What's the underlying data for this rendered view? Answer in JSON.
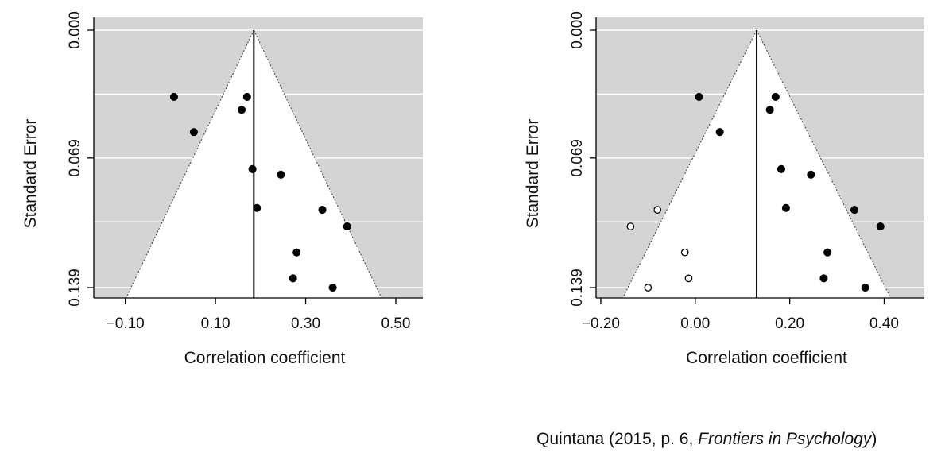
{
  "citation": {
    "prefix": "Quintana (2015, p. 6, ",
    "journal": "Frontiers in Psychology",
    "suffix": ")"
  },
  "chart_data": [
    {
      "type": "scatter",
      "subtype": "funnel-plot",
      "title": "",
      "xlabel": "Correlation coefficient",
      "ylabel": "Standard Error",
      "xlim": [
        -0.17,
        0.56
      ],
      "ylim": [
        0.139,
        0.0
      ],
      "y_reversed": true,
      "xticks": [
        -0.1,
        0.1,
        0.3,
        0.5
      ],
      "xtick_labels": [
        "−0.10",
        "0.10",
        "0.30",
        "0.50"
      ],
      "yticks": [
        0.0,
        0.069,
        0.139
      ],
      "ytick_labels": [
        "0.000",
        "0.069",
        "0.139"
      ],
      "grid": "horizontal",
      "funnel_center": 0.185,
      "funnel_multiplier": 1.96,
      "colors": {
        "background": "#d4d4d4",
        "funnel": "#ffffff",
        "points": "#000000"
      },
      "series": [
        {
          "marker": "filled",
          "points": [
            {
              "x": 0.008,
              "y": 0.036
            },
            {
              "x": 0.17,
              "y": 0.036
            },
            {
              "x": 0.158,
              "y": 0.043
            },
            {
              "x": 0.052,
              "y": 0.055
            },
            {
              "x": 0.182,
              "y": 0.075
            },
            {
              "x": 0.245,
              "y": 0.078
            },
            {
              "x": 0.192,
              "y": 0.096
            },
            {
              "x": 0.337,
              "y": 0.097
            },
            {
              "x": 0.392,
              "y": 0.106
            },
            {
              "x": 0.28,
              "y": 0.12
            },
            {
              "x": 0.272,
              "y": 0.134
            },
            {
              "x": 0.36,
              "y": 0.139
            }
          ]
        }
      ]
    },
    {
      "type": "scatter",
      "subtype": "funnel-plot",
      "title": "",
      "xlabel": "Correlation coefficient",
      "ylabel": "Standard Error",
      "xlim": [
        -0.21,
        0.485
      ],
      "ylim": [
        0.139,
        0.0
      ],
      "y_reversed": true,
      "xticks": [
        -0.2,
        0.0,
        0.2,
        0.4
      ],
      "xtick_labels": [
        "−0.20",
        "0.00",
        "0.20",
        "0.40"
      ],
      "yticks": [
        0.0,
        0.069,
        0.139
      ],
      "ytick_labels": [
        "0.000",
        "0.069",
        "0.139"
      ],
      "grid": "horizontal",
      "funnel_center": 0.13,
      "funnel_multiplier": 1.96,
      "colors": {
        "background": "#d4d4d4",
        "funnel": "#ffffff",
        "points": "#000000"
      },
      "series": [
        {
          "marker": "filled",
          "points": [
            {
              "x": 0.008,
              "y": 0.036
            },
            {
              "x": 0.17,
              "y": 0.036
            },
            {
              "x": 0.158,
              "y": 0.043
            },
            {
              "x": 0.052,
              "y": 0.055
            },
            {
              "x": 0.182,
              "y": 0.075
            },
            {
              "x": 0.245,
              "y": 0.078
            },
            {
              "x": 0.192,
              "y": 0.096
            },
            {
              "x": 0.337,
              "y": 0.097
            },
            {
              "x": 0.392,
              "y": 0.106
            },
            {
              "x": 0.28,
              "y": 0.12
            },
            {
              "x": 0.272,
              "y": 0.134
            },
            {
              "x": 0.36,
              "y": 0.139
            }
          ]
        },
        {
          "marker": "open",
          "points": [
            {
              "x": -0.08,
              "y": 0.097
            },
            {
              "x": -0.137,
              "y": 0.106
            },
            {
              "x": -0.022,
              "y": 0.12
            },
            {
              "x": -0.014,
              "y": 0.134
            },
            {
              "x": -0.1,
              "y": 0.139
            }
          ]
        }
      ]
    }
  ]
}
